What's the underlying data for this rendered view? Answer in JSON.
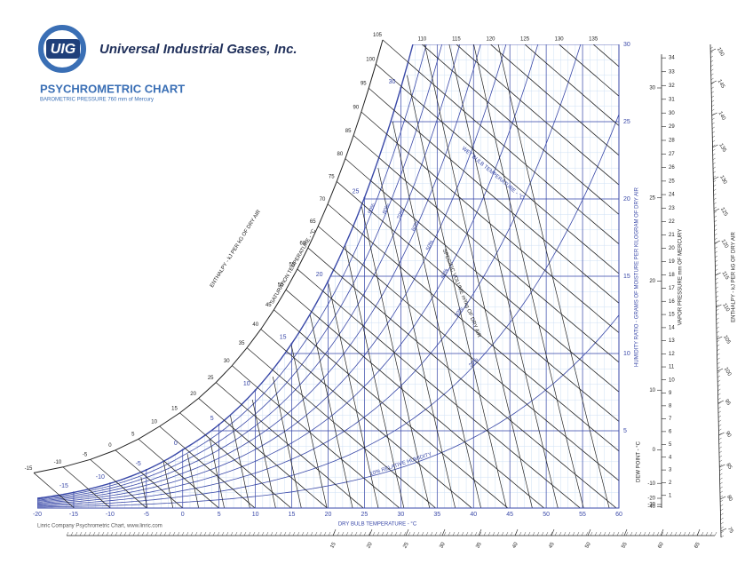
{
  "header": {
    "logo": "UIG",
    "company": "Universal Industrial Gases, Inc."
  },
  "chart_data": {
    "type": "psychrometric",
    "title": "PSYCHROMETRIC CHART",
    "subtitle": "BAROMETRIC PRESSURE 760 mm of Mercury",
    "x_label": "DRY BULB TEMPERATURE - °C",
    "y_label": "HUMIDITY RATIO - GRAMS OF MOISTURE PER KILOGRAM OF DRY AIR",
    "xlim": [
      -20,
      60
    ],
    "xticks": [
      -20,
      -15,
      -10,
      -5,
      0,
      5,
      10,
      15,
      20,
      25,
      30,
      35,
      40,
      45,
      50,
      55,
      60
    ],
    "ylim": [
      0,
      30
    ],
    "yticks": [
      5,
      10,
      15,
      20,
      25,
      30
    ],
    "color": "#3a49a8",
    "grid": true,
    "saturation": {
      "label": "SATURATION TEMPERATURE - °C",
      "values": [
        -15,
        -10,
        -5,
        0,
        5,
        10,
        15,
        20,
        25,
        30
      ]
    },
    "relative_humidity": {
      "values": [
        10,
        20,
        30,
        40,
        50,
        60,
        70,
        80,
        90
      ],
      "value_labels": [
        "10% RELATIVE HUMIDITY",
        "20%",
        "30%",
        "40%",
        "50%",
        "60%",
        "70%",
        "80%",
        "90%"
      ]
    },
    "wet_bulb_label": "WET BULB TEMPERATURE - °C",
    "enthalpy": {
      "label": "ENTHALPY - kJ PER kG OF DRY AIR",
      "values": [
        -15,
        -10,
        -5,
        0,
        5,
        10,
        15,
        20,
        25,
        30,
        35,
        40,
        45,
        50,
        55,
        60,
        65,
        70,
        75,
        80,
        85,
        90,
        95,
        100,
        105,
        110,
        115,
        120,
        125,
        130,
        135
      ]
    },
    "specific_volume": {
      "label": "SPECIFIC VOLUME m³/kg OF DRY AIR",
      "values": [
        0.76,
        0.77,
        0.78,
        0.79,
        0.8,
        0.81,
        0.82,
        0.83,
        0.84,
        0.85,
        0.86,
        0.87,
        0.88,
        0.89,
        0.9,
        0.91,
        0.92,
        0.93,
        0.94
      ]
    },
    "vapor_pressure": {
      "label": "VAPOR PRESSURE mm OF MERCURY",
      "values": [
        1,
        2,
        3,
        4,
        5,
        6,
        7,
        8,
        9,
        10,
        11,
        12,
        13,
        14,
        15,
        16,
        17,
        18,
        19,
        20,
        21,
        22,
        23,
        24,
        25,
        26,
        27,
        28,
        29,
        30,
        31,
        32,
        33,
        34
      ]
    },
    "dew_point": {
      "label": "DEW POINT - °C",
      "values": [
        -40,
        -30,
        -20,
        -10,
        0,
        10,
        20,
        25,
        30
      ]
    },
    "enthalpy_right": {
      "label": "ENTHALPY - kJ PER kG OF DRY AIR",
      "values": [
        75,
        80,
        85,
        90,
        95,
        100,
        105,
        110,
        115,
        120,
        125,
        130,
        135,
        140,
        145,
        150
      ]
    },
    "enthalpy_bottom": {
      "values": [
        15,
        20,
        25,
        30,
        35,
        40,
        45,
        50,
        55,
        60,
        65
      ]
    }
  },
  "footer": "Linric Company Psychrometric Chart, www.linric.com"
}
